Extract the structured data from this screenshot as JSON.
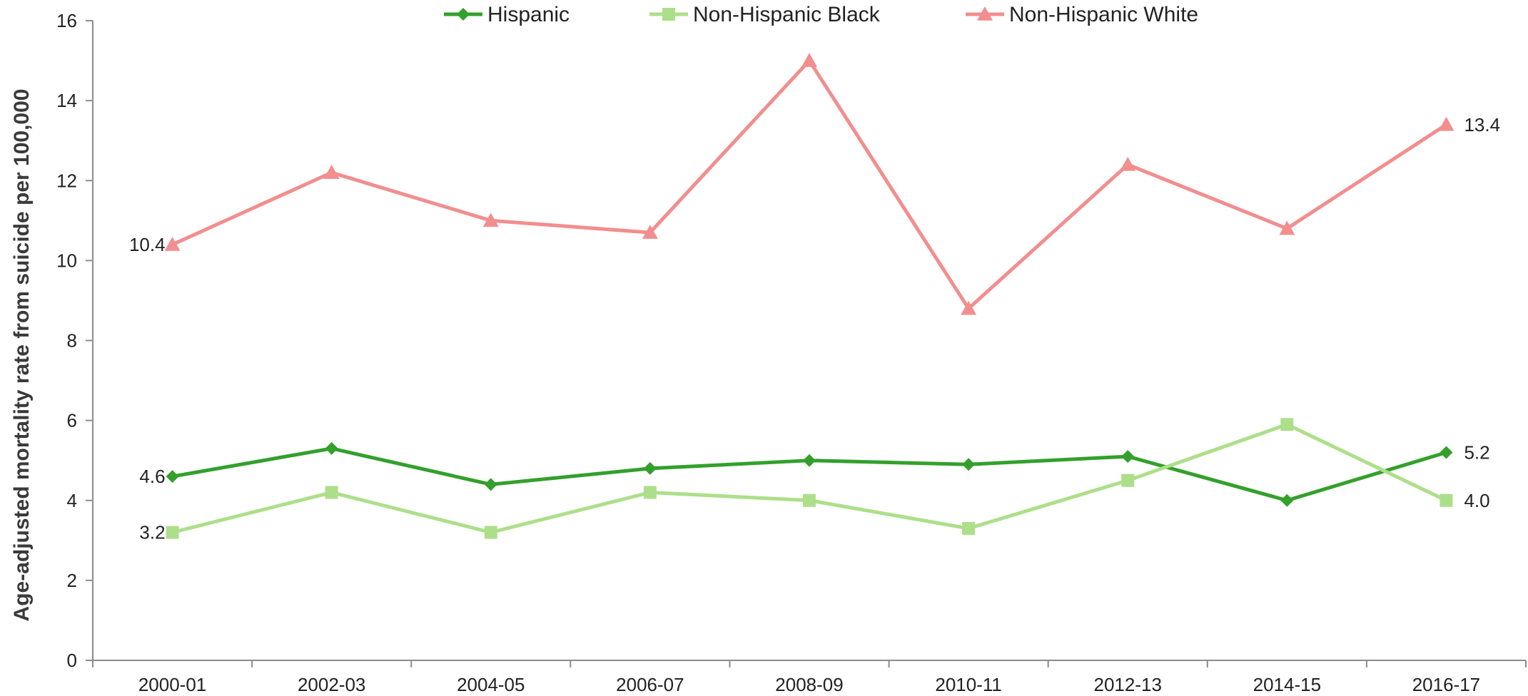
{
  "chart_data": {
    "type": "line",
    "title": "",
    "xlabel": "",
    "ylabel": "Age-adjusted mortality rate from suicide per 100,000",
    "ylim": [
      0,
      16
    ],
    "yticks": [
      0,
      2,
      4,
      6,
      8,
      10,
      12,
      14,
      16
    ],
    "grid": false,
    "legend_position": "top",
    "categories": [
      "2000-01",
      "2002-03",
      "2004-05",
      "2006-07",
      "2008-09",
      "2010-11",
      "2012-13",
      "2014-15",
      "2016-17"
    ],
    "series": [
      {
        "name": "Hispanic",
        "color": "#33a02c",
        "marker": "diamond",
        "values": [
          4.6,
          5.3,
          4.4,
          4.8,
          5.0,
          4.9,
          5.1,
          4.0,
          5.2
        ],
        "labels": [
          {
            "index": 0,
            "text": "4.6",
            "side": "left"
          },
          {
            "index": 8,
            "text": "5.2",
            "side": "right"
          }
        ]
      },
      {
        "name": "Non-Hispanic Black",
        "color": "#addf8a",
        "marker": "square",
        "values": [
          3.2,
          4.2,
          3.2,
          4.2,
          4.0,
          3.3,
          4.5,
          5.9,
          4.0
        ],
        "labels": [
          {
            "index": 0,
            "text": "3.2",
            "side": "left"
          },
          {
            "index": 8,
            "text": "4.0",
            "side": "right"
          }
        ]
      },
      {
        "name": "Non-Hispanic White",
        "color": "#f28e8e",
        "marker": "triangle",
        "values": [
          10.4,
          12.2,
          11.0,
          10.7,
          15.0,
          8.8,
          12.4,
          10.8,
          13.4
        ],
        "labels": [
          {
            "index": 0,
            "text": "10.4",
            "side": "left"
          },
          {
            "index": 8,
            "text": "13.4",
            "side": "right"
          }
        ]
      }
    ]
  }
}
